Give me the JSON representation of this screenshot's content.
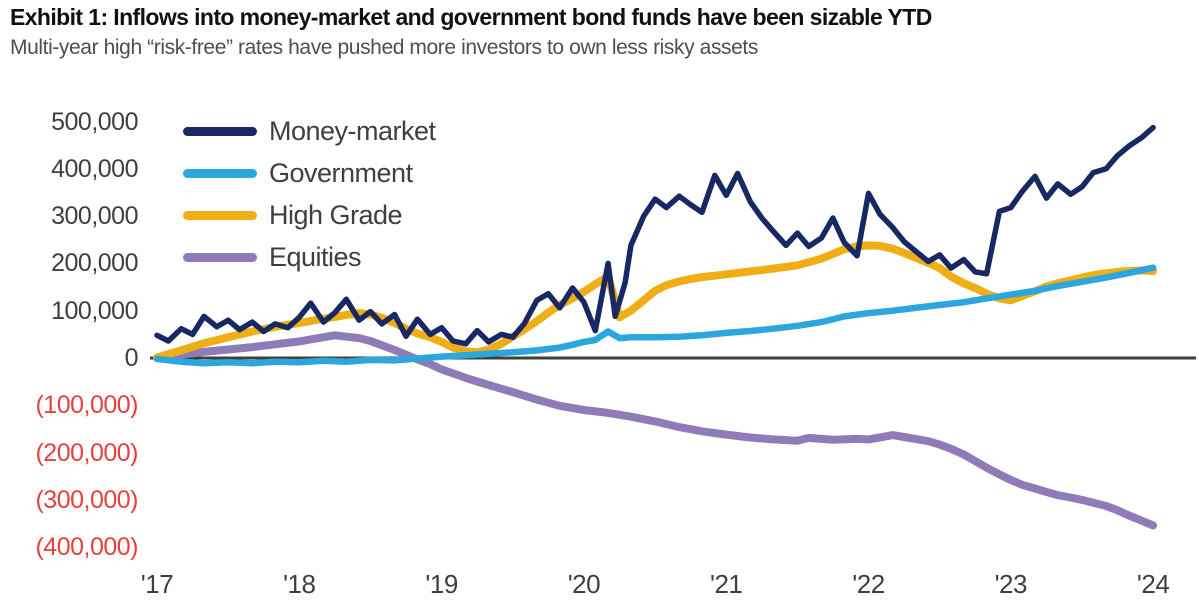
{
  "chart_data": {
    "type": "line",
    "title": "Exhibit 1: Inflows into money-market and government bond funds have been sizable YTD",
    "subtitle": "Multi-year high “risk-free” rates have pushed more investors to own less risky assets",
    "grid": false,
    "zero_line": true,
    "legend": {
      "position": "top-left inside plot"
    },
    "x_axis": {
      "range": [
        2017,
        2024.1
      ],
      "ticks": [
        {
          "label": "'17",
          "year": 2017
        },
        {
          "label": "'18",
          "year": 2018
        },
        {
          "label": "'19",
          "year": 2019
        },
        {
          "label": "'20",
          "year": 2020
        },
        {
          "label": "'21",
          "year": 2021
        },
        {
          "label": "'22",
          "year": 2022
        },
        {
          "label": "'23",
          "year": 2023
        },
        {
          "label": "'24",
          "year": 2024
        }
      ]
    },
    "y_axis": {
      "range": [
        -400000,
        500000
      ],
      "negative_style": "red text in parentheses",
      "ticks": [
        {
          "label": "500,000",
          "value": 500000
        },
        {
          "label": "400,000",
          "value": 400000
        },
        {
          "label": "300,000",
          "value": 300000
        },
        {
          "label": "200,000",
          "value": 200000
        },
        {
          "label": "100,000",
          "value": 100000
        },
        {
          "label": "0",
          "value": 0
        },
        {
          "label": "(100,000)",
          "value": -100000
        },
        {
          "label": "(200,000)",
          "value": -200000
        },
        {
          "label": "(300,000)",
          "value": -300000
        },
        {
          "label": "(400,000)",
          "value": -400000
        }
      ]
    },
    "colors": {
      "negative_tick": "#e5413f",
      "tick_text": "#3f3f3f",
      "axis_line": "#3f3f3f",
      "title_text": "#111111",
      "subtitle_text": "#4f4f4f",
      "legend_text": "#3f3f3f"
    },
    "series": [
      {
        "key": "money-market",
        "name": "Money-market",
        "color": "#172862",
        "stroke_width": 5.5,
        "points": [
          [
            2017.0,
            48000
          ],
          [
            2017.08,
            36000
          ],
          [
            2017.17,
            62000
          ],
          [
            2017.25,
            50000
          ],
          [
            2017.33,
            88000
          ],
          [
            2017.42,
            66000
          ],
          [
            2017.5,
            80000
          ],
          [
            2017.58,
            60000
          ],
          [
            2017.67,
            76000
          ],
          [
            2017.75,
            56000
          ],
          [
            2017.83,
            72000
          ],
          [
            2017.92,
            64000
          ],
          [
            2018.0,
            86000
          ],
          [
            2018.08,
            116000
          ],
          [
            2018.17,
            76000
          ],
          [
            2018.25,
            96000
          ],
          [
            2018.33,
            124000
          ],
          [
            2018.42,
            80000
          ],
          [
            2018.5,
            98000
          ],
          [
            2018.58,
            72000
          ],
          [
            2018.67,
            92000
          ],
          [
            2018.75,
            46000
          ],
          [
            2018.83,
            82000
          ],
          [
            2018.92,
            50000
          ],
          [
            2019.0,
            64000
          ],
          [
            2019.08,
            36000
          ],
          [
            2019.17,
            30000
          ],
          [
            2019.25,
            58000
          ],
          [
            2019.33,
            34000
          ],
          [
            2019.42,
            50000
          ],
          [
            2019.5,
            44000
          ],
          [
            2019.58,
            72000
          ],
          [
            2019.67,
            122000
          ],
          [
            2019.75,
            136000
          ],
          [
            2019.83,
            106000
          ],
          [
            2019.92,
            148000
          ],
          [
            2020.0,
            118000
          ],
          [
            2020.08,
            58000
          ],
          [
            2020.17,
            200000
          ],
          [
            2020.22,
            88000
          ],
          [
            2020.29,
            160000
          ],
          [
            2020.33,
            238000
          ],
          [
            2020.42,
            300000
          ],
          [
            2020.5,
            336000
          ],
          [
            2020.58,
            318000
          ],
          [
            2020.67,
            342000
          ],
          [
            2020.75,
            324000
          ],
          [
            2020.83,
            308000
          ],
          [
            2020.92,
            386000
          ],
          [
            2021.0,
            344000
          ],
          [
            2021.08,
            390000
          ],
          [
            2021.17,
            330000
          ],
          [
            2021.25,
            296000
          ],
          [
            2021.33,
            268000
          ],
          [
            2021.42,
            238000
          ],
          [
            2021.5,
            264000
          ],
          [
            2021.58,
            236000
          ],
          [
            2021.67,
            254000
          ],
          [
            2021.75,
            296000
          ],
          [
            2021.83,
            244000
          ],
          [
            2021.92,
            216000
          ],
          [
            2022.0,
            348000
          ],
          [
            2022.08,
            304000
          ],
          [
            2022.17,
            276000
          ],
          [
            2022.25,
            246000
          ],
          [
            2022.33,
            226000
          ],
          [
            2022.42,
            204000
          ],
          [
            2022.5,
            218000
          ],
          [
            2022.58,
            190000
          ],
          [
            2022.67,
            208000
          ],
          [
            2022.75,
            182000
          ],
          [
            2022.83,
            178000
          ],
          [
            2022.92,
            310000
          ],
          [
            2023.0,
            318000
          ],
          [
            2023.08,
            352000
          ],
          [
            2023.17,
            384000
          ],
          [
            2023.25,
            338000
          ],
          [
            2023.33,
            368000
          ],
          [
            2023.42,
            346000
          ],
          [
            2023.5,
            362000
          ],
          [
            2023.58,
            392000
          ],
          [
            2023.67,
            400000
          ],
          [
            2023.75,
            428000
          ],
          [
            2023.83,
            448000
          ],
          [
            2023.92,
            466000
          ],
          [
            2024.0,
            487000
          ]
        ]
      },
      {
        "key": "government",
        "name": "Government",
        "color": "#2ba7de",
        "stroke_width": 6.5,
        "points": [
          [
            2017.0,
            -2000
          ],
          [
            2017.17,
            -8000
          ],
          [
            2017.33,
            -11000
          ],
          [
            2017.5,
            -9000
          ],
          [
            2017.67,
            -11000
          ],
          [
            2017.83,
            -8000
          ],
          [
            2018.0,
            -9000
          ],
          [
            2018.17,
            -6000
          ],
          [
            2018.33,
            -8000
          ],
          [
            2018.5,
            -4000
          ],
          [
            2018.67,
            -5000
          ],
          [
            2018.83,
            -1000
          ],
          [
            2019.0,
            3000
          ],
          [
            2019.17,
            6000
          ],
          [
            2019.33,
            9000
          ],
          [
            2019.5,
            12000
          ],
          [
            2019.67,
            16000
          ],
          [
            2019.83,
            22000
          ],
          [
            2019.92,
            28000
          ],
          [
            2020.0,
            34000
          ],
          [
            2020.08,
            38000
          ],
          [
            2020.17,
            56000
          ],
          [
            2020.25,
            42000
          ],
          [
            2020.33,
            44000
          ],
          [
            2020.5,
            44000
          ],
          [
            2020.67,
            45000
          ],
          [
            2020.83,
            48000
          ],
          [
            2021.0,
            53000
          ],
          [
            2021.17,
            57000
          ],
          [
            2021.33,
            62000
          ],
          [
            2021.5,
            68000
          ],
          [
            2021.67,
            76000
          ],
          [
            2021.83,
            88000
          ],
          [
            2022.0,
            95000
          ],
          [
            2022.17,
            100000
          ],
          [
            2022.33,
            106000
          ],
          [
            2022.5,
            112000
          ],
          [
            2022.67,
            118000
          ],
          [
            2022.83,
            126000
          ],
          [
            2023.0,
            134000
          ],
          [
            2023.17,
            142000
          ],
          [
            2023.33,
            152000
          ],
          [
            2023.5,
            161000
          ],
          [
            2023.67,
            170000
          ],
          [
            2023.83,
            180000
          ],
          [
            2024.0,
            191000
          ]
        ]
      },
      {
        "key": "high-grade",
        "name": "High Grade",
        "color": "#efae15",
        "stroke_width": 8,
        "points": [
          [
            2017.0,
            1000
          ],
          [
            2017.17,
            16000
          ],
          [
            2017.33,
            31000
          ],
          [
            2017.5,
            44000
          ],
          [
            2017.67,
            56000
          ],
          [
            2017.83,
            66000
          ],
          [
            2018.0,
            74000
          ],
          [
            2018.17,
            83000
          ],
          [
            2018.33,
            91000
          ],
          [
            2018.42,
            95000
          ],
          [
            2018.5,
            92000
          ],
          [
            2018.58,
            85000
          ],
          [
            2018.67,
            74000
          ],
          [
            2018.75,
            62000
          ],
          [
            2018.83,
            52000
          ],
          [
            2018.92,
            44000
          ],
          [
            2019.0,
            34000
          ],
          [
            2019.08,
            22000
          ],
          [
            2019.17,
            14000
          ],
          [
            2019.25,
            12000
          ],
          [
            2019.33,
            18000
          ],
          [
            2019.42,
            30000
          ],
          [
            2019.5,
            45000
          ],
          [
            2019.58,
            60000
          ],
          [
            2019.67,
            78000
          ],
          [
            2019.75,
            96000
          ],
          [
            2019.83,
            112000
          ],
          [
            2019.92,
            126000
          ],
          [
            2020.0,
            140000
          ],
          [
            2020.08,
            156000
          ],
          [
            2020.17,
            172000
          ],
          [
            2020.25,
            86000
          ],
          [
            2020.33,
            100000
          ],
          [
            2020.42,
            122000
          ],
          [
            2020.5,
            142000
          ],
          [
            2020.58,
            154000
          ],
          [
            2020.67,
            162000
          ],
          [
            2020.75,
            167000
          ],
          [
            2020.83,
            171000
          ],
          [
            2020.92,
            174000
          ],
          [
            2021.0,
            177000
          ],
          [
            2021.17,
            183000
          ],
          [
            2021.33,
            189000
          ],
          [
            2021.5,
            196000
          ],
          [
            2021.67,
            210000
          ],
          [
            2021.83,
            230000
          ],
          [
            2021.92,
            236000
          ],
          [
            2022.0,
            238000
          ],
          [
            2022.08,
            237000
          ],
          [
            2022.17,
            231000
          ],
          [
            2022.25,
            222000
          ],
          [
            2022.33,
            212000
          ],
          [
            2022.42,
            201000
          ],
          [
            2022.5,
            190000
          ],
          [
            2022.58,
            172000
          ],
          [
            2022.67,
            158000
          ],
          [
            2022.75,
            148000
          ],
          [
            2022.83,
            136000
          ],
          [
            2022.92,
            126000
          ],
          [
            2023.0,
            122000
          ],
          [
            2023.08,
            131000
          ],
          [
            2023.17,
            141000
          ],
          [
            2023.25,
            151000
          ],
          [
            2023.33,
            158000
          ],
          [
            2023.42,
            164000
          ],
          [
            2023.5,
            170000
          ],
          [
            2023.58,
            175000
          ],
          [
            2023.67,
            179000
          ],
          [
            2023.75,
            182000
          ],
          [
            2023.83,
            184000
          ],
          [
            2023.92,
            185000
          ],
          [
            2024.0,
            184000
          ]
        ]
      },
      {
        "key": "equities",
        "name": "Equities",
        "color": "#8e7cb9",
        "stroke_width": 8,
        "points": [
          [
            2017.0,
            0
          ],
          [
            2017.17,
            7000
          ],
          [
            2017.33,
            13000
          ],
          [
            2017.5,
            18000
          ],
          [
            2017.67,
            23000
          ],
          [
            2017.83,
            29000
          ],
          [
            2018.0,
            35000
          ],
          [
            2018.17,
            44000
          ],
          [
            2018.25,
            48000
          ],
          [
            2018.33,
            45000
          ],
          [
            2018.42,
            42000
          ],
          [
            2018.5,
            36000
          ],
          [
            2018.58,
            27000
          ],
          [
            2018.67,
            17000
          ],
          [
            2018.75,
            7000
          ],
          [
            2018.83,
            -3000
          ],
          [
            2018.92,
            -13000
          ],
          [
            2019.0,
            -24000
          ],
          [
            2019.17,
            -42000
          ],
          [
            2019.33,
            -57000
          ],
          [
            2019.5,
            -72000
          ],
          [
            2019.67,
            -88000
          ],
          [
            2019.83,
            -101000
          ],
          [
            2020.0,
            -110000
          ],
          [
            2020.17,
            -116000
          ],
          [
            2020.33,
            -124000
          ],
          [
            2020.5,
            -134000
          ],
          [
            2020.67,
            -146000
          ],
          [
            2020.83,
            -155000
          ],
          [
            2021.0,
            -162000
          ],
          [
            2021.17,
            -168000
          ],
          [
            2021.33,
            -172000
          ],
          [
            2021.5,
            -175000
          ],
          [
            2021.58,
            -169000
          ],
          [
            2021.75,
            -173000
          ],
          [
            2021.92,
            -171000
          ],
          [
            2022.0,
            -172000
          ],
          [
            2022.08,
            -168000
          ],
          [
            2022.17,
            -163000
          ],
          [
            2022.25,
            -167000
          ],
          [
            2022.33,
            -171000
          ],
          [
            2022.42,
            -176000
          ],
          [
            2022.5,
            -183000
          ],
          [
            2022.58,
            -192000
          ],
          [
            2022.67,
            -204000
          ],
          [
            2022.75,
            -218000
          ],
          [
            2022.83,
            -232000
          ],
          [
            2022.92,
            -246000
          ],
          [
            2023.0,
            -258000
          ],
          [
            2023.08,
            -268000
          ],
          [
            2023.17,
            -276000
          ],
          [
            2023.25,
            -283000
          ],
          [
            2023.33,
            -290000
          ],
          [
            2023.42,
            -295000
          ],
          [
            2023.5,
            -300000
          ],
          [
            2023.58,
            -306000
          ],
          [
            2023.67,
            -313000
          ],
          [
            2023.75,
            -322000
          ],
          [
            2023.83,
            -333000
          ],
          [
            2023.92,
            -344000
          ],
          [
            2024.0,
            -354000
          ]
        ]
      }
    ]
  }
}
